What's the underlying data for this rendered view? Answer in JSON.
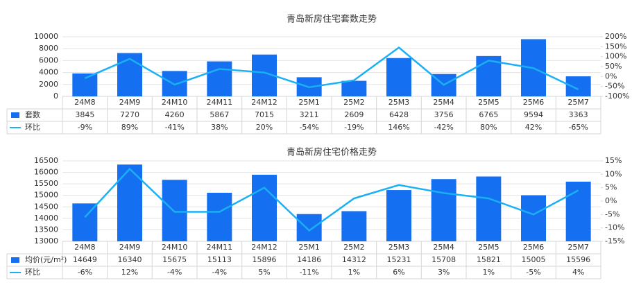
{
  "chart_data": [
    {
      "type": "bar-line",
      "title": "青岛新房住宅套数走势",
      "categories": [
        "24M8",
        "24M9",
        "24M10",
        "24M11",
        "24M12",
        "25M1",
        "25M2",
        "25M3",
        "25M4",
        "25M5",
        "25M6",
        "25M7"
      ],
      "series": [
        {
          "name": "套数",
          "type": "bar",
          "color": "#1470f0",
          "values": [
            3845,
            7270,
            4260,
            5867,
            7015,
            3211,
            2609,
            6428,
            3756,
            6765,
            9594,
            3363
          ]
        },
        {
          "name": "环比",
          "type": "line",
          "axis": "y2",
          "color": "#1ab0f5",
          "values": [
            -9,
            89,
            -41,
            38,
            20,
            -54,
            -19,
            146,
            -42,
            80,
            42,
            -65
          ],
          "value_labels": [
            "-9%",
            "89%",
            "-41%",
            "38%",
            "20%",
            "-54%",
            "-19%",
            "146%",
            "-42%",
            "80%",
            "42%",
            "-65%"
          ]
        }
      ],
      "ylim": [
        0,
        10000
      ],
      "yticks": [
        0,
        2000,
        4000,
        6000,
        8000,
        10000
      ],
      "y2lim": [
        -100,
        200
      ],
      "y2ticks": [
        {
          "value": -100,
          "label": "-100%"
        },
        {
          "value": -50,
          "label": "-50%"
        },
        {
          "value": 0,
          "label": "0%"
        },
        {
          "value": 50,
          "label": "50%"
        },
        {
          "value": 100,
          "label": "100%"
        },
        {
          "value": 150,
          "label": "150%"
        },
        {
          "value": 200,
          "label": "200%"
        }
      ],
      "grid": true
    },
    {
      "type": "bar-line",
      "title": "青岛新房住宅价格走势",
      "categories": [
        "24M8",
        "24M9",
        "24M10",
        "24M11",
        "24M12",
        "25M1",
        "25M2",
        "25M3",
        "25M4",
        "25M5",
        "25M6",
        "25M7"
      ],
      "series": [
        {
          "name": "均价(元/m²)",
          "type": "bar",
          "color": "#1470f0",
          "values": [
            14649,
            16340,
            15675,
            15113,
            15896,
            14186,
            14312,
            15231,
            15708,
            15821,
            15005,
            15596
          ]
        },
        {
          "name": "环比",
          "type": "line",
          "axis": "y2",
          "color": "#1ab0f5",
          "values": [
            -6,
            12,
            -4,
            -4,
            5,
            -11,
            1,
            6,
            3,
            1,
            -5,
            4
          ],
          "value_labels": [
            "-6%",
            "12%",
            "-4%",
            "-4%",
            "5%",
            "-11%",
            "1%",
            "6%",
            "3%",
            "1%",
            "-5%",
            "4%"
          ]
        }
      ],
      "ylim": [
        13000,
        16500
      ],
      "yticks": [
        13000,
        13500,
        14000,
        14500,
        15000,
        15500,
        16000,
        16500
      ],
      "y2lim": [
        -15,
        15
      ],
      "y2ticks": [
        {
          "value": -15,
          "label": "-15%"
        },
        {
          "value": -10,
          "label": "-10%"
        },
        {
          "value": -5,
          "label": "-5%"
        },
        {
          "value": 0,
          "label": "0%"
        },
        {
          "value": 5,
          "label": "5%"
        },
        {
          "value": 10,
          "label": "10%"
        },
        {
          "value": 15,
          "label": "15%"
        }
      ],
      "grid": true
    }
  ]
}
